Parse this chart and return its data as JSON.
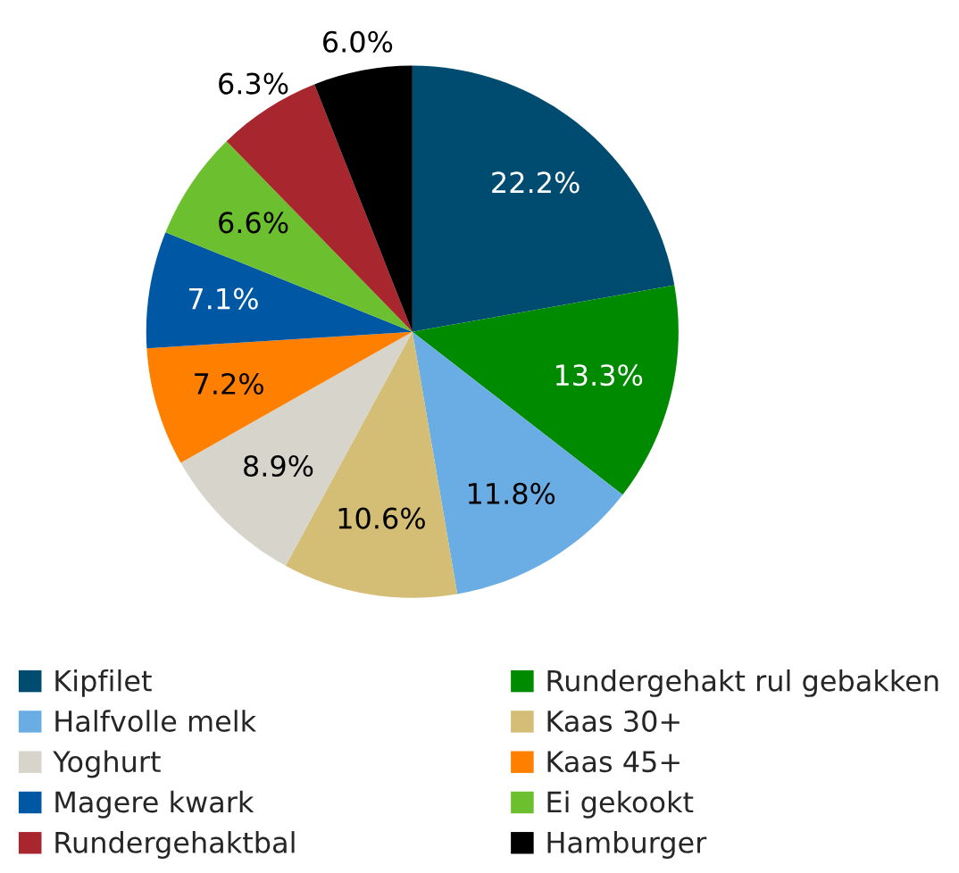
{
  "chart_data": {
    "type": "pie",
    "categories": [
      "Kipfilet",
      "Rundergehakt rul gebakken",
      "Halfvolle melk",
      "Kaas 30+",
      "Yoghurt",
      "Kaas 45+",
      "Magere kwark",
      "Ei gekookt",
      "Rundergehaktbal",
      "Hamburger"
    ],
    "values": [
      22.2,
      13.3,
      11.8,
      10.6,
      8.9,
      7.2,
      7.1,
      6.6,
      6.3,
      6.0
    ],
    "colors": [
      "#004c70",
      "#008a00",
      "#6aade4",
      "#d4bd75",
      "#d7d4cb",
      "#ff7f00",
      "#0057a4",
      "#6cbf2e",
      "#a8272e",
      "#000000"
    ],
    "value_labels": [
      "22.2%",
      "13.3%",
      "11.8%",
      "10.6%",
      "8.9%",
      "7.2%",
      "7.1%",
      "6.6%",
      "6.3%",
      "6.0%"
    ],
    "legend": "bottom"
  }
}
